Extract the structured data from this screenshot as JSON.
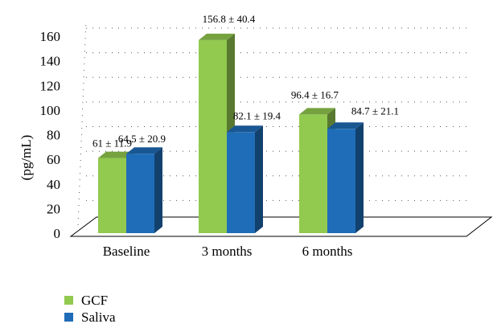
{
  "chart_data": {
    "type": "bar",
    "categories": [
      "Baseline",
      "3 months",
      "6 months"
    ],
    "series": [
      {
        "name": "GCF",
        "values": [
          61,
          156.8,
          96.4
        ],
        "labels": [
          "61 ± 11.9",
          "156.8 ± 40.4",
          "96.4 ± 16.7"
        ],
        "color": "#92c94f"
      },
      {
        "name": "Saliva",
        "values": [
          64.5,
          82.1,
          84.7
        ],
        "labels": [
          "64.5 ± 20.9",
          "82.1 ± 19.4",
          "84.7 ± 21.1"
        ],
        "color": "#1f6db8"
      }
    ],
    "ylabel": "(pg/mL)",
    "ylim": [
      0,
      160
    ],
    "yticks": [
      "0",
      "20",
      "40",
      "60",
      "80",
      "100",
      "120",
      "140",
      "160"
    ],
    "grid": true,
    "legend_position": "bottom-left",
    "style": "3d"
  }
}
